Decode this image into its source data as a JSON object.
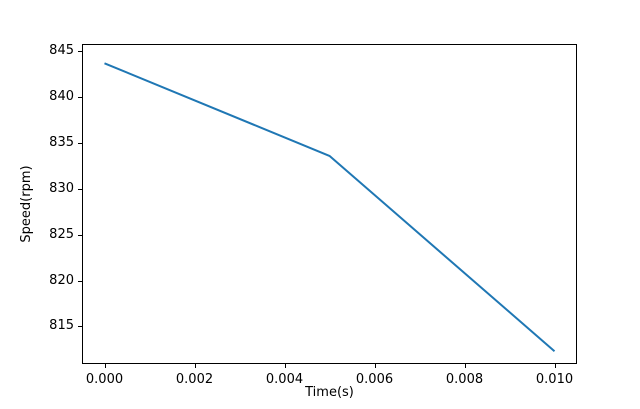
{
  "figure": {
    "background": "#ffffff"
  },
  "chart_data": {
    "type": "line",
    "title": "",
    "xlabel": "Time(s)",
    "ylabel": "Speed(rpm)",
    "series": [
      {
        "name": "speed",
        "x": [
          0.0,
          0.005,
          0.01
        ],
        "y": [
          843.7,
          833.6,
          812.3
        ],
        "color": "#1f77b4",
        "line_width": 2
      }
    ],
    "xlim": [
      -0.0005,
      0.0105
    ],
    "ylim": [
      810.9,
      845.8
    ],
    "xticks": [
      0.0,
      0.002,
      0.004,
      0.006,
      0.008,
      0.01
    ],
    "xtick_labels": [
      "0.000",
      "0.002",
      "0.004",
      "0.006",
      "0.008",
      "0.010"
    ],
    "yticks": [
      815,
      820,
      825,
      830,
      835,
      840,
      845
    ],
    "ytick_labels": [
      "815",
      "820",
      "825",
      "830",
      "835",
      "840",
      "845"
    ],
    "grid": false,
    "legend": null,
    "axis_color": "#000000",
    "text_color": "#000000"
  }
}
